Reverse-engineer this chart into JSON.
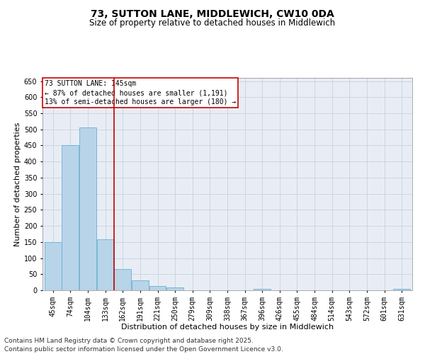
{
  "title_line1": "73, SUTTON LANE, MIDDLEWICH, CW10 0DA",
  "title_line2": "Size of property relative to detached houses in Middlewich",
  "xlabel": "Distribution of detached houses by size in Middlewich",
  "ylabel": "Number of detached properties",
  "categories": [
    "45sqm",
    "74sqm",
    "104sqm",
    "133sqm",
    "162sqm",
    "191sqm",
    "221sqm",
    "250sqm",
    "279sqm",
    "309sqm",
    "338sqm",
    "367sqm",
    "396sqm",
    "426sqm",
    "455sqm",
    "484sqm",
    "514sqm",
    "543sqm",
    "572sqm",
    "601sqm",
    "631sqm"
  ],
  "values": [
    150,
    450,
    505,
    158,
    65,
    30,
    13,
    8,
    0,
    0,
    0,
    0,
    4,
    0,
    0,
    0,
    0,
    0,
    0,
    0,
    4
  ],
  "bar_color": "#b8d4e8",
  "bar_edge_color": "#6aafd6",
  "vline_position": 3.5,
  "vline_color": "#cc0000",
  "annotation_box_text": "73 SUTTON LANE: 145sqm\n← 87% of detached houses are smaller (1,191)\n13% of semi-detached houses are larger (180) →",
  "annotation_box_color": "#cc0000",
  "annotation_box_fill": "#ffffff",
  "ylim": [
    0,
    660
  ],
  "yticks": [
    0,
    50,
    100,
    150,
    200,
    250,
    300,
    350,
    400,
    450,
    500,
    550,
    600,
    650
  ],
  "grid_color": "#cdd5e4",
  "background_color": "#e8edf5",
  "footer_line1": "Contains HM Land Registry data © Crown copyright and database right 2025.",
  "footer_line2": "Contains public sector information licensed under the Open Government Licence v3.0.",
  "footer_fontsize": 6.5,
  "title1_fontsize": 10,
  "title2_fontsize": 8.5,
  "xlabel_fontsize": 8,
  "ylabel_fontsize": 8,
  "tick_fontsize": 7,
  "ann_fontsize": 7
}
